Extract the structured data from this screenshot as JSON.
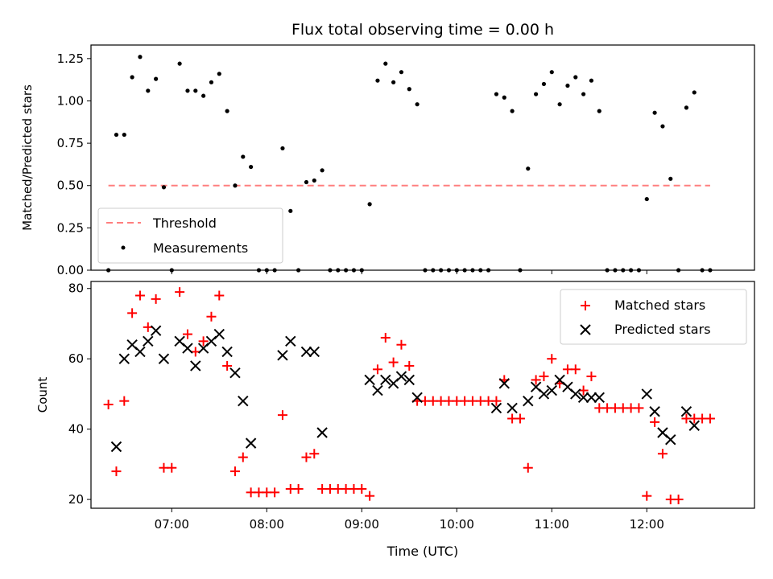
{
  "chart_data": [
    {
      "type": "scatter",
      "title": "Flux total observing time = 0.00 h",
      "ylabel": "Matched/Predicted stars",
      "xlabel": "",
      "ylim": [
        0,
        1.33
      ],
      "xlim": [
        "06:09",
        "13:08"
      ],
      "yticks": [
        "0.00",
        "0.25",
        "0.50",
        "0.75",
        "1.00",
        "1.25"
      ],
      "xticks": [
        "07:00",
        "08:00",
        "09:00",
        "10:00",
        "11:00",
        "12:00"
      ],
      "legend_position": "lower-left",
      "legend": [
        "Threshold",
        "Measurements"
      ],
      "threshold": {
        "name": "Threshold",
        "value": 0.5,
        "x_range": [
          "06:20",
          "12:40"
        ],
        "color": "#ff7f7f",
        "style": "dashed"
      },
      "series": [
        {
          "name": "Measurements",
          "color": "#000000",
          "points": [
            [
              "06:20",
              0.0
            ],
            [
              "06:25",
              0.8
            ],
            [
              "06:30",
              0.8
            ],
            [
              "06:35",
              1.14
            ],
            [
              "06:40",
              1.26
            ],
            [
              "06:45",
              1.06
            ],
            [
              "06:50",
              1.13
            ],
            [
              "06:55",
              0.49
            ],
            [
              "07:00",
              0.0
            ],
            [
              "07:05",
              1.22
            ],
            [
              "07:10",
              1.06
            ],
            [
              "07:15",
              1.06
            ],
            [
              "07:20",
              1.03
            ],
            [
              "07:25",
              1.11
            ],
            [
              "07:30",
              1.16
            ],
            [
              "07:35",
              0.94
            ],
            [
              "07:40",
              0.5
            ],
            [
              "07:45",
              0.67
            ],
            [
              "07:50",
              0.61
            ],
            [
              "07:55",
              0.0
            ],
            [
              "08:00",
              0.0
            ],
            [
              "08:05",
              0.0
            ],
            [
              "08:10",
              0.72
            ],
            [
              "08:15",
              0.35
            ],
            [
              "08:20",
              0.0
            ],
            [
              "08:25",
              0.52
            ],
            [
              "08:30",
              0.53
            ],
            [
              "08:35",
              0.59
            ],
            [
              "08:40",
              0.0
            ],
            [
              "08:45",
              0.0
            ],
            [
              "08:50",
              0.0
            ],
            [
              "08:55",
              0.0
            ],
            [
              "09:00",
              0.0
            ],
            [
              "09:05",
              0.39
            ],
            [
              "09:10",
              1.12
            ],
            [
              "09:15",
              1.22
            ],
            [
              "09:20",
              1.11
            ],
            [
              "09:25",
              1.17
            ],
            [
              "09:30",
              1.07
            ],
            [
              "09:35",
              0.98
            ],
            [
              "09:40",
              0.0
            ],
            [
              "09:45",
              0.0
            ],
            [
              "09:50",
              0.0
            ],
            [
              "09:55",
              0.0
            ],
            [
              "10:00",
              0.0
            ],
            [
              "10:05",
              0.0
            ],
            [
              "10:10",
              0.0
            ],
            [
              "10:15",
              0.0
            ],
            [
              "10:20",
              0.0
            ],
            [
              "10:25",
              1.04
            ],
            [
              "10:30",
              1.02
            ],
            [
              "10:35",
              0.94
            ],
            [
              "10:40",
              0.0
            ],
            [
              "10:45",
              0.6
            ],
            [
              "10:50",
              1.04
            ],
            [
              "10:55",
              1.1
            ],
            [
              "11:00",
              1.17
            ],
            [
              "11:05",
              0.98
            ],
            [
              "11:10",
              1.09
            ],
            [
              "11:15",
              1.14
            ],
            [
              "11:20",
              1.04
            ],
            [
              "11:25",
              1.12
            ],
            [
              "11:30",
              0.94
            ],
            [
              "11:35",
              0.0
            ],
            [
              "11:40",
              0.0
            ],
            [
              "11:45",
              0.0
            ],
            [
              "11:50",
              0.0
            ],
            [
              "11:55",
              0.0
            ],
            [
              "12:00",
              0.42
            ],
            [
              "12:05",
              0.93
            ],
            [
              "12:10",
              0.85
            ],
            [
              "12:15",
              0.54
            ],
            [
              "12:20",
              0.0
            ],
            [
              "12:25",
              0.96
            ],
            [
              "12:30",
              1.05
            ],
            [
              "12:35",
              0.0
            ],
            [
              "12:40",
              0.0
            ]
          ]
        }
      ]
    },
    {
      "type": "scatter",
      "title": "",
      "ylabel": "Count",
      "xlabel": "Time (UTC)",
      "ylim": [
        17.5,
        82
      ],
      "xlim": [
        "06:09",
        "13:08"
      ],
      "yticks": [
        "20",
        "40",
        "60",
        "80"
      ],
      "xticks": [
        "07:00",
        "08:00",
        "09:00",
        "10:00",
        "11:00",
        "12:00"
      ],
      "legend_position": "upper-right",
      "legend": [
        "Matched stars",
        "Predicted stars"
      ],
      "series": [
        {
          "name": "Matched stars",
          "color": "#ff0000",
          "marker": "plus",
          "points": [
            [
              "06:20",
              47
            ],
            [
              "06:25",
              28
            ],
            [
              "06:30",
              48
            ],
            [
              "06:35",
              73
            ],
            [
              "06:40",
              78
            ],
            [
              "06:45",
              69
            ],
            [
              "06:50",
              77
            ],
            [
              "06:55",
              29
            ],
            [
              "07:00",
              29
            ],
            [
              "07:05",
              79
            ],
            [
              "07:10",
              67
            ],
            [
              "07:15",
              62
            ],
            [
              "07:20",
              65
            ],
            [
              "07:25",
              72
            ],
            [
              "07:30",
              78
            ],
            [
              "07:35",
              58
            ],
            [
              "07:40",
              28
            ],
            [
              "07:45",
              32
            ],
            [
              "07:50",
              22
            ],
            [
              "07:55",
              22
            ],
            [
              "08:00",
              22
            ],
            [
              "08:05",
              22
            ],
            [
              "08:10",
              44
            ],
            [
              "08:15",
              23
            ],
            [
              "08:20",
              23
            ],
            [
              "08:25",
              32
            ],
            [
              "08:30",
              33
            ],
            [
              "08:35",
              23
            ],
            [
              "08:40",
              23
            ],
            [
              "08:45",
              23
            ],
            [
              "08:50",
              23
            ],
            [
              "08:55",
              23
            ],
            [
              "09:00",
              23
            ],
            [
              "09:05",
              21
            ],
            [
              "09:10",
              57
            ],
            [
              "09:15",
              66
            ],
            [
              "09:20",
              59
            ],
            [
              "09:25",
              64
            ],
            [
              "09:30",
              58
            ],
            [
              "09:35",
              48
            ],
            [
              "09:40",
              48
            ],
            [
              "09:45",
              48
            ],
            [
              "09:50",
              48
            ],
            [
              "09:55",
              48
            ],
            [
              "10:00",
              48
            ],
            [
              "10:05",
              48
            ],
            [
              "10:10",
              48
            ],
            [
              "10:15",
              48
            ],
            [
              "10:20",
              48
            ],
            [
              "10:25",
              48
            ],
            [
              "10:30",
              54
            ],
            [
              "10:35",
              43
            ],
            [
              "10:40",
              43
            ],
            [
              "10:45",
              29
            ],
            [
              "10:50",
              54
            ],
            [
              "10:55",
              55
            ],
            [
              "11:00",
              60
            ],
            [
              "11:05",
              53
            ],
            [
              "11:10",
              57
            ],
            [
              "11:15",
              57
            ],
            [
              "11:20",
              51
            ],
            [
              "11:25",
              55
            ],
            [
              "11:30",
              46
            ],
            [
              "11:35",
              46
            ],
            [
              "11:40",
              46
            ],
            [
              "11:45",
              46
            ],
            [
              "11:50",
              46
            ],
            [
              "11:55",
              46
            ],
            [
              "12:00",
              21
            ],
            [
              "12:05",
              42
            ],
            [
              "12:10",
              33
            ],
            [
              "12:15",
              20
            ],
            [
              "12:20",
              20
            ],
            [
              "12:25",
              43
            ],
            [
              "12:30",
              43
            ],
            [
              "12:35",
              43
            ],
            [
              "12:40",
              43
            ]
          ]
        },
        {
          "name": "Predicted stars",
          "color": "#000000",
          "marker": "x",
          "points": [
            [
              "06:25",
              35
            ],
            [
              "06:30",
              60
            ],
            [
              "06:35",
              64
            ],
            [
              "06:40",
              62
            ],
            [
              "06:45",
              65
            ],
            [
              "06:50",
              68
            ],
            [
              "06:55",
              60
            ],
            [
              "07:05",
              65
            ],
            [
              "07:10",
              63
            ],
            [
              "07:15",
              58
            ],
            [
              "07:20",
              63
            ],
            [
              "07:25",
              65
            ],
            [
              "07:30",
              67
            ],
            [
              "07:35",
              62
            ],
            [
              "07:40",
              56
            ],
            [
              "07:45",
              48
            ],
            [
              "07:50",
              36
            ],
            [
              "08:10",
              61
            ],
            [
              "08:15",
              65
            ],
            [
              "08:25",
              62
            ],
            [
              "08:30",
              62
            ],
            [
              "08:35",
              39
            ],
            [
              "09:05",
              54
            ],
            [
              "09:10",
              51
            ],
            [
              "09:15",
              54
            ],
            [
              "09:20",
              53
            ],
            [
              "09:25",
              55
            ],
            [
              "09:30",
              54
            ],
            [
              "09:35",
              49
            ],
            [
              "10:25",
              46
            ],
            [
              "10:30",
              53
            ],
            [
              "10:35",
              46
            ],
            [
              "10:45",
              48
            ],
            [
              "10:50",
              52
            ],
            [
              "10:55",
              50
            ],
            [
              "11:00",
              51
            ],
            [
              "11:05",
              54
            ],
            [
              "11:10",
              52
            ],
            [
              "11:15",
              50
            ],
            [
              "11:20",
              49
            ],
            [
              "11:25",
              49
            ],
            [
              "11:30",
              49
            ],
            [
              "12:00",
              50
            ],
            [
              "12:05",
              45
            ],
            [
              "12:10",
              39
            ],
            [
              "12:15",
              37
            ],
            [
              "12:25",
              45
            ],
            [
              "12:30",
              41
            ]
          ]
        }
      ]
    }
  ]
}
